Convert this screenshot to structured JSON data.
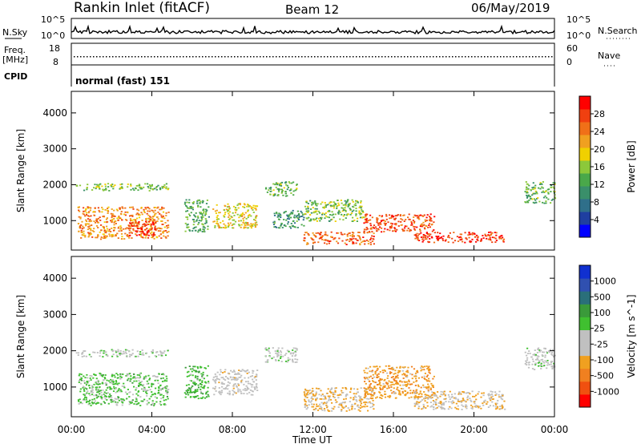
{
  "header": {
    "station": "Rankin Inlet (fitACF)",
    "beam": "Beam 12",
    "date": "06/May/2019"
  },
  "top_panels": {
    "nsky_label": "N.Sky",
    "nsky_ticks": [
      "10^5",
      "10^0"
    ],
    "nsearch_label": "N.Search",
    "nsearch_ticks": [
      "10^5",
      "10^0"
    ],
    "freq_label": "Freq.",
    "freq_unit": "[MHz]",
    "freq_ticks": [
      "18",
      "8"
    ],
    "nave_label": "Nave",
    "nave_ticks": [
      "60",
      "0"
    ],
    "cpid_label": "CPID",
    "cpid_value": "normal (fast) 151"
  },
  "colors": {
    "background": "#ffffff",
    "power_scale": [
      "#0000ff",
      "#1f3fa0",
      "#2f6f8a",
      "#3a8f6a",
      "#4aa84a",
      "#8cc83a",
      "#f0d000",
      "#f0a020",
      "#f07018",
      "#f04010",
      "#ff0000"
    ],
    "velocity_scale": [
      "#ff0000",
      "#f05010",
      "#f08020",
      "#f0a020",
      "#c0c0c0",
      "#c0c0c0",
      "#40c030",
      "#3a9a3a",
      "#2a6f7a",
      "#3050b0",
      "#1030d0"
    ]
  },
  "chart_data": [
    {
      "type": "heatmap",
      "title": "",
      "ylabel": "Slant Range [km]",
      "xlabel": "",
      "x_ticks": [
        "00:00",
        "04:00",
        "08:00",
        "12:00",
        "16:00",
        "20:00",
        "00:00"
      ],
      "y_ticks": [
        "1000",
        "2000",
        "3000",
        "4000"
      ],
      "xlim": [
        0,
        24
      ],
      "ylim": [
        180,
        4600
      ],
      "colorbar": {
        "label": "Power [dB]",
        "ticks": [
          "28",
          "24",
          "20",
          "16",
          "12",
          "8",
          "4"
        ],
        "range": [
          0,
          30
        ]
      },
      "regions": [
        {
          "x": [
            0.2,
            4.8
          ],
          "y": [
            1850,
            2050
          ],
          "value": 14
        },
        {
          "x": [
            0.3,
            4.8
          ],
          "y": [
            500,
            1400
          ],
          "value": 22
        },
        {
          "x": [
            2.8,
            4.2
          ],
          "y": [
            600,
            1000
          ],
          "value": 27
        },
        {
          "x": [
            5.6,
            6.8
          ],
          "y": [
            700,
            1600
          ],
          "value": 12
        },
        {
          "x": [
            7.0,
            9.2
          ],
          "y": [
            800,
            1500
          ],
          "value": 18
        },
        {
          "x": [
            9.6,
            11.2
          ],
          "y": [
            1700,
            2100
          ],
          "value": 13
        },
        {
          "x": [
            10.0,
            11.6
          ],
          "y": [
            800,
            1300
          ],
          "value": 10
        },
        {
          "x": [
            11.5,
            14.5
          ],
          "y": [
            1000,
            1600
          ],
          "value": 14
        },
        {
          "x": [
            11.5,
            15.0
          ],
          "y": [
            350,
            700
          ],
          "value": 24
        },
        {
          "x": [
            14.5,
            18.0
          ],
          "y": [
            700,
            1200
          ],
          "value": 25
        },
        {
          "x": [
            17.0,
            21.5
          ],
          "y": [
            400,
            700
          ],
          "value": 26
        },
        {
          "x": [
            22.5,
            24.0
          ],
          "y": [
            1500,
            2100
          ],
          "value": 13
        }
      ]
    },
    {
      "type": "heatmap",
      "title": "",
      "ylabel": "Slant Range [km]",
      "xlabel": "Time UT",
      "x_ticks": [
        "00:00",
        "04:00",
        "08:00",
        "12:00",
        "16:00",
        "20:00",
        "00:00"
      ],
      "y_ticks": [
        "1000",
        "2000",
        "3000",
        "4000"
      ],
      "xlim": [
        0,
        24
      ],
      "ylim": [
        180,
        4600
      ],
      "colorbar": {
        "label": "Velocity [m s^-1]",
        "ticks": [
          "1000",
          "500",
          "100",
          "25",
          "-25",
          "-100",
          "-500",
          "-1000"
        ],
        "range": [
          -1000,
          1000
        ]
      },
      "regions": [
        {
          "x": [
            0.2,
            4.8
          ],
          "y": [
            1850,
            2050
          ],
          "value": 0
        },
        {
          "x": [
            0.3,
            4.8
          ],
          "y": [
            500,
            1400
          ],
          "value": 150
        },
        {
          "x": [
            5.6,
            6.8
          ],
          "y": [
            700,
            1600
          ],
          "value": 200
        },
        {
          "x": [
            7.0,
            9.2
          ],
          "y": [
            800,
            1500
          ],
          "value": -150
        },
        {
          "x": [
            9.6,
            11.2
          ],
          "y": [
            1700,
            2100
          ],
          "value": 0
        },
        {
          "x": [
            11.5,
            15.0
          ],
          "y": [
            350,
            1000
          ],
          "value": -300
        },
        {
          "x": [
            14.5,
            18.0
          ],
          "y": [
            700,
            1600
          ],
          "value": -400
        },
        {
          "x": [
            17.0,
            21.5
          ],
          "y": [
            400,
            900
          ],
          "value": -250
        },
        {
          "x": [
            22.5,
            24.0
          ],
          "y": [
            1500,
            2100
          ],
          "value": 0
        }
      ]
    }
  ]
}
